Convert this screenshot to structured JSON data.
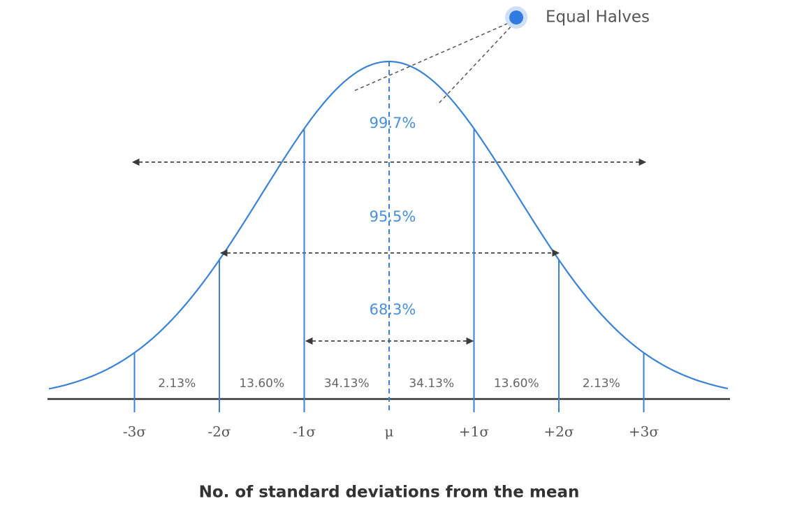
{
  "annotation": "Equal Halves",
  "ranges": [
    "99.7%",
    "95.5%",
    "68.3%"
  ],
  "segments": [
    "2.13%",
    "13.60%",
    "34.13%",
    "34.13%",
    "13.60%",
    "2.13%"
  ],
  "axis_labels": [
    "-3σ",
    "-2σ",
    "-1σ",
    "μ",
    "+1σ",
    "+2σ",
    "+3σ"
  ],
  "x_axis_title": "No. of standard deviations from the mean"
}
